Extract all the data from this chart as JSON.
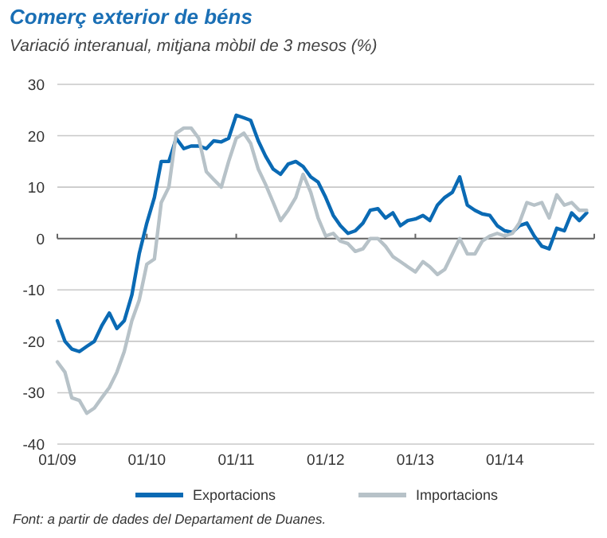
{
  "chart_data": {
    "type": "line",
    "title": "Comerç exterior de béns",
    "subtitle": "Variació interanual, mitjana mòbil de 3 mesos (%)",
    "x": [
      "2009-01",
      "2009-02",
      "2009-03",
      "2009-04",
      "2009-05",
      "2009-06",
      "2009-07",
      "2009-08",
      "2009-09",
      "2009-10",
      "2009-11",
      "2009-12",
      "2010-01",
      "2010-02",
      "2010-03",
      "2010-04",
      "2010-05",
      "2010-06",
      "2010-07",
      "2010-08",
      "2010-09",
      "2010-10",
      "2010-11",
      "2010-12",
      "2011-01",
      "2011-02",
      "2011-03",
      "2011-04",
      "2011-05",
      "2011-06",
      "2011-07",
      "2011-08",
      "2011-09",
      "2011-10",
      "2011-11",
      "2011-12",
      "2012-01",
      "2012-02",
      "2012-03",
      "2012-04",
      "2012-05",
      "2012-06",
      "2012-07",
      "2012-08",
      "2012-09",
      "2012-10",
      "2012-11",
      "2012-12",
      "2013-01",
      "2013-02",
      "2013-03",
      "2013-04",
      "2013-05",
      "2013-06",
      "2013-07",
      "2013-08",
      "2013-09",
      "2013-10",
      "2013-11",
      "2013-12",
      "2014-01",
      "2014-02",
      "2014-03",
      "2014-04",
      "2014-05",
      "2014-06",
      "2014-07",
      "2014-08",
      "2014-09",
      "2014-10",
      "2014-11",
      "2014-12"
    ],
    "series": [
      {
        "name": "Exportacions",
        "color": "#0a6ab4",
        "values": [
          -16,
          -20,
          -21.5,
          -22,
          -21,
          -20,
          -17,
          -14.5,
          -17.5,
          -16,
          -11,
          -3,
          3,
          8,
          15,
          15,
          19.5,
          17.5,
          18,
          18,
          17.5,
          19,
          18.8,
          19.5,
          24,
          23.5,
          23,
          19,
          16,
          13.5,
          12.5,
          14.5,
          15,
          14,
          12,
          11,
          8,
          4.5,
          2.5,
          1,
          1.5,
          3,
          5.5,
          5.8,
          4,
          5,
          2.5,
          3.5,
          3.8,
          4.5,
          3.5,
          6.5,
          8,
          9,
          12,
          6.5,
          5.5,
          4.8,
          4.5,
          2.5,
          1.5,
          1.2,
          2.5,
          3,
          0.5,
          -1.5,
          -2,
          2,
          1.5,
          5,
          3.5,
          5
        ]
      },
      {
        "name": "Importacions",
        "color": "#b7c2c8",
        "values": [
          -24,
          -26,
          -31,
          -31.5,
          -34,
          -33,
          -31,
          -29,
          -26,
          -22,
          -16,
          -12,
          -5,
          -4,
          7,
          10,
          20.5,
          21.5,
          21.5,
          19.5,
          13,
          11.5,
          10,
          15,
          19.5,
          20.5,
          18.5,
          13.5,
          10.5,
          7,
          3.5,
          5.5,
          8,
          12.5,
          9,
          4,
          0.5,
          1,
          -0.5,
          -1,
          -2.5,
          -2,
          0,
          0,
          -1.5,
          -3.5,
          -4.5,
          -5.5,
          -6.5,
          -4.5,
          -5.5,
          -7,
          -6,
          -3,
          0,
          -3,
          -3,
          -0.5,
          0.5,
          1,
          0.5,
          1,
          3,
          7,
          6.5,
          7,
          4,
          8.5,
          6.5,
          7,
          5.5,
          5.5
        ]
      }
    ],
    "xlim": [
      "2009-01",
      "2015-01"
    ],
    "xticks": [
      {
        "value": "2009-01",
        "label": "01/09"
      },
      {
        "value": "2010-01",
        "label": "01/10"
      },
      {
        "value": "2011-01",
        "label": "01/11"
      },
      {
        "value": "2012-01",
        "label": "01/12"
      },
      {
        "value": "2013-01",
        "label": "01/13"
      },
      {
        "value": "2014-01",
        "label": "01/14"
      },
      {
        "value": "2015-01",
        "label": null
      }
    ],
    "ylim": [
      -40,
      30
    ],
    "yticks": [
      -40,
      -30,
      -20,
      -10,
      0,
      10,
      20,
      30
    ],
    "grid": "y",
    "legend": "bottom",
    "line_style": "solid",
    "marker": "none",
    "annotations": [
      "Font: a partir de dades del Departament de Duanes."
    ]
  }
}
